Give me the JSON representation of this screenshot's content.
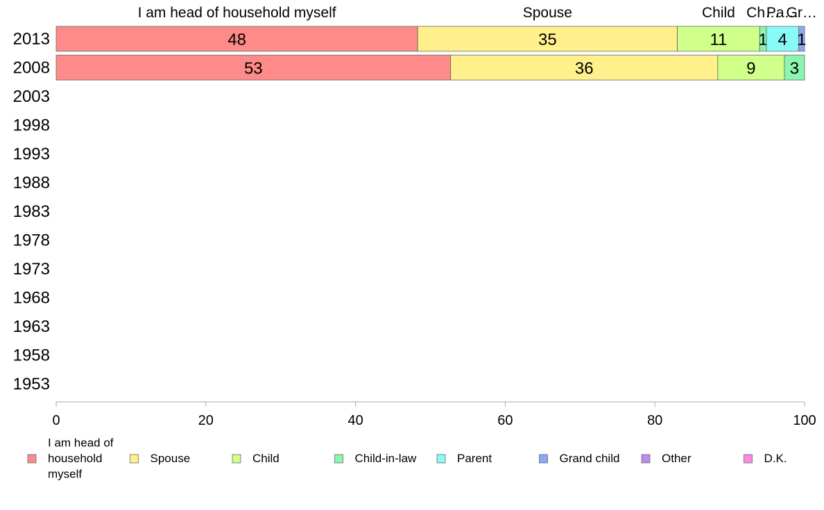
{
  "chart_data": {
    "type": "bar",
    "orientation": "horizontal",
    "stacked": true,
    "categories": [
      "2013",
      "2008",
      "2003",
      "1998",
      "1993",
      "1988",
      "1983",
      "1978",
      "1973",
      "1968",
      "1963",
      "1958",
      "1953"
    ],
    "series": [
      {
        "name": "I am head of household myself",
        "legend_lines": [
          "I am head of",
          "household",
          "myself"
        ],
        "color": "#ff8a8a",
        "values": [
          48.3,
          52.7,
          null,
          null,
          null,
          null,
          null,
          null,
          null,
          null,
          null,
          null,
          null
        ],
        "labels": [
          "48",
          "53"
        ]
      },
      {
        "name": "Spouse",
        "legend_lines": [
          "Spouse"
        ],
        "color": "#fff08c",
        "values": [
          34.7,
          35.7,
          null,
          null,
          null,
          null,
          null,
          null,
          null,
          null,
          null,
          null,
          null
        ],
        "labels": [
          "35",
          "36"
        ]
      },
      {
        "name": "Child",
        "legend_lines": [
          "Child"
        ],
        "color": "#d0ff8a",
        "values": [
          11.0,
          8.9,
          null,
          null,
          null,
          null,
          null,
          null,
          null,
          null,
          null,
          null,
          null
        ],
        "labels": [
          "11",
          "9"
        ]
      },
      {
        "name": "Child-in-law",
        "legend_lines": [
          "Child-in-law"
        ],
        "color": "#8cf5b0",
        "values": [
          0.9,
          2.7,
          null,
          null,
          null,
          null,
          null,
          null,
          null,
          null,
          null,
          null,
          null
        ],
        "labels": [
          "1",
          "3"
        ]
      },
      {
        "name": "Parent",
        "legend_lines": [
          "Parent"
        ],
        "color": "#8afaf8",
        "values": [
          4.3,
          0,
          null,
          null,
          null,
          null,
          null,
          null,
          null,
          null,
          null,
          null,
          null
        ],
        "labels": [
          "4",
          ""
        ]
      },
      {
        "name": "Grand child",
        "legend_lines": [
          "Grand child"
        ],
        "color": "#8aa8f5",
        "values": [
          0.8,
          0,
          null,
          null,
          null,
          null,
          null,
          null,
          null,
          null,
          null,
          null,
          null
        ],
        "labels": [
          "1",
          ""
        ]
      },
      {
        "name": "Other",
        "legend_lines": [
          "Other"
        ],
        "color": "#bd8cf2",
        "values": [
          0,
          0,
          null,
          null,
          null,
          null,
          null,
          null,
          null,
          null,
          null,
          null,
          null
        ],
        "labels": [
          "",
          ""
        ]
      },
      {
        "name": "D.K.",
        "legend_lines": [
          "D.K."
        ],
        "color": "#fa8ce6",
        "values": [
          0,
          0,
          null,
          null,
          null,
          null,
          null,
          null,
          null,
          null,
          null,
          null,
          null
        ],
        "labels": [
          "",
          ""
        ]
      }
    ],
    "top_labels": [
      "I am head of household myself",
      "Spouse",
      "Child",
      "Ch…",
      "Pa…",
      "Gr…"
    ],
    "xlim": [
      0,
      100
    ],
    "xticks": [
      "0",
      "20",
      "40",
      "60",
      "80",
      "100"
    ],
    "title": "",
    "xlabel": "",
    "ylabel": "",
    "grid": false,
    "legend_position": "bottom"
  }
}
